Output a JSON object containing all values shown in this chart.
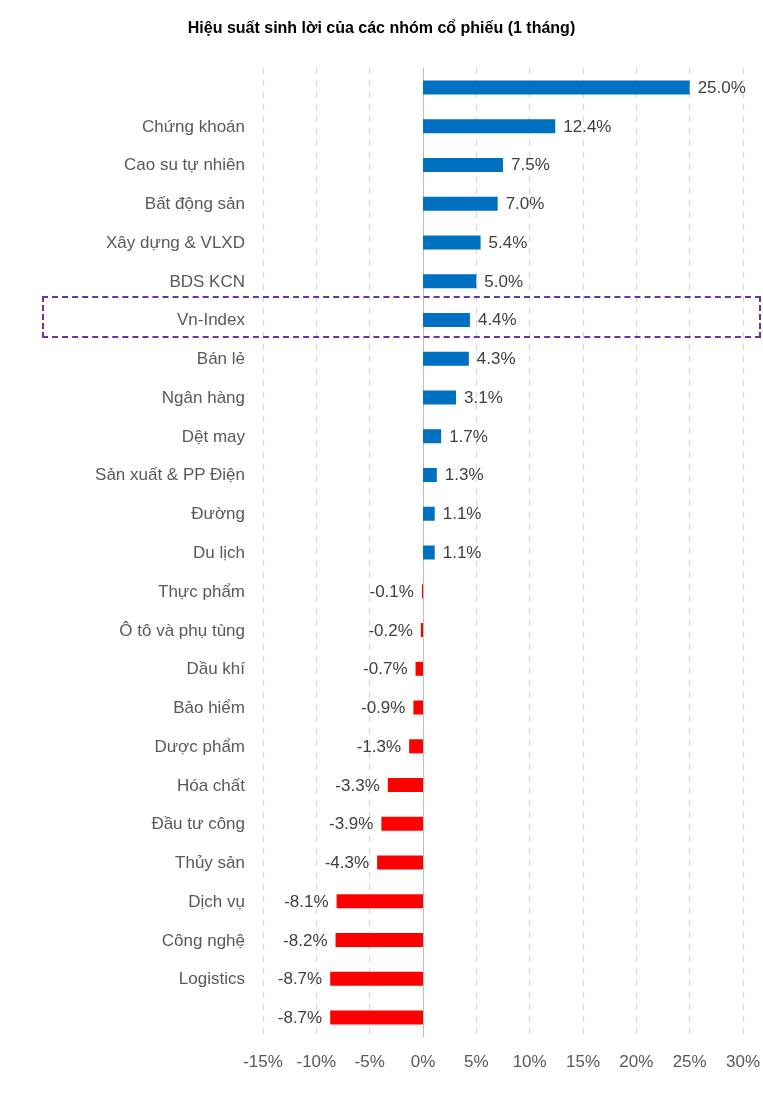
{
  "chart_data": {
    "type": "bar",
    "orientation": "horizontal",
    "title": "Hiệu suất sinh lời của các nhóm cổ phiếu (1 tháng)",
    "categories": [
      null,
      "Chứng khoán",
      "Cao su tự nhiên",
      "Bất động sản",
      "Xây dựng & VLXD",
      "BDS KCN",
      "Vn-Index",
      "Bán lẻ",
      "Ngân hàng",
      "Dệt may",
      "Sản xuất & PP Điện",
      "Đường",
      "Du lịch",
      "Thực phẩm",
      "Ô tô và phụ tùng",
      "Dầu khí",
      "Bảo hiểm",
      "Dược phẩm",
      "Hóa chất",
      "Đầu tư công",
      "Thủy sản",
      "Dịch vụ",
      "Công nghệ",
      "Logistics",
      null
    ],
    "values": [
      25.0,
      12.4,
      7.5,
      7.0,
      5.4,
      5.0,
      4.4,
      4.3,
      3.1,
      1.7,
      1.3,
      1.1,
      1.1,
      -0.1,
      -0.2,
      -0.7,
      -0.9,
      -1.3,
      -3.3,
      -3.9,
      -4.3,
      -8.1,
      -8.2,
      -8.7,
      -8.7
    ],
    "value_labels": [
      "25.0%",
      "12.4%",
      "7.5%",
      "7.0%",
      "5.4%",
      "5.0%",
      "4.4%",
      "4.3%",
      "3.1%",
      "1.7%",
      "1.3%",
      "1.1%",
      "1.1%",
      "-0.1%",
      "-0.2%",
      "-0.7%",
      "-0.9%",
      "-1.3%",
      "-3.3%",
      "-3.9%",
      "-4.3%",
      "-8.1%",
      "-8.2%",
      "-8.7%",
      "-8.7%"
    ],
    "colors": [
      "#0070c0",
      "#0070c0",
      "#0070c0",
      "#0070c0",
      "#0070c0",
      "#0070c0",
      "#0070c0",
      "#0070c0",
      "#0070c0",
      "#0070c0",
      "#0070c0",
      "#0070c0",
      "#0070c0",
      "#ff0000",
      "#ff0000",
      "#ff0000",
      "#ff0000",
      "#ff0000",
      "#ff0000",
      "#ff0000",
      "#ff0000",
      "#ff0000",
      "#ff0000",
      "#ff0000",
      "#ff0000"
    ],
    "xlim": [
      -15,
      30
    ],
    "xticks": [
      {
        "value": -15,
        "label": "-15%"
      },
      {
        "value": -10,
        "label": "-10%"
      },
      {
        "value": -5,
        "label": "-5%"
      },
      {
        "value": 0,
        "label": "0%"
      },
      {
        "value": 5,
        "label": "5%"
      },
      {
        "value": 10,
        "label": "10%"
      },
      {
        "value": 15,
        "label": "15%"
      },
      {
        "value": 20,
        "label": "20%"
      },
      {
        "value": 25,
        "label": "25%"
      },
      {
        "value": 30,
        "label": "30%"
      }
    ],
    "grid": "x"
  }
}
